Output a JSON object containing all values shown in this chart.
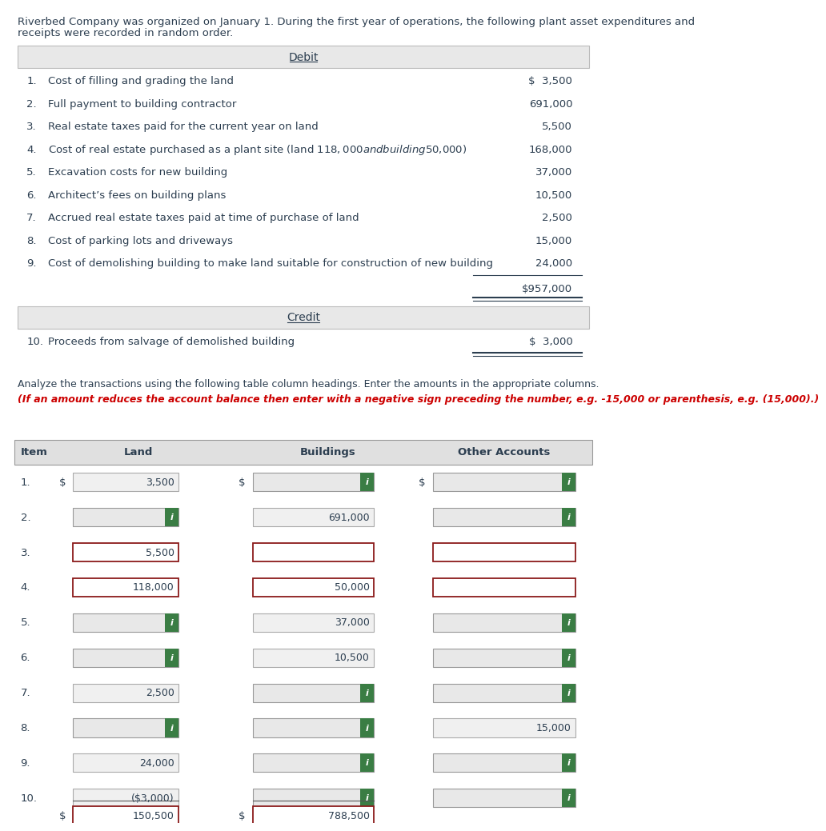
{
  "header_line1": "Riverbed Company was organized on January 1. During the first year of operations, the following plant asset expenditures and",
  "header_line2": "receipts were recorded in random order.",
  "debit_items": [
    {
      "num": "1.",
      "desc": "Cost of filling and grading the land",
      "amount": "$  3,500"
    },
    {
      "num": "2.",
      "desc": "Full payment to building contractor",
      "amount": "691,000"
    },
    {
      "num": "3.",
      "desc": "Real estate taxes paid for the current year on land",
      "amount": "5,500"
    },
    {
      "num": "4.",
      "desc": "Cost of real estate purchased as a plant site (land $118,000 and building $50,000)",
      "amount": "168,000"
    },
    {
      "num": "5.",
      "desc": "Excavation costs for new building",
      "amount": "37,000"
    },
    {
      "num": "6.",
      "desc": "Architect’s fees on building plans",
      "amount": "10,500"
    },
    {
      "num": "7.",
      "desc": "Accrued real estate taxes paid at time of purchase of land",
      "amount": "2,500"
    },
    {
      "num": "8.",
      "desc": "Cost of parking lots and driveways",
      "amount": "15,000"
    },
    {
      "num": "9.",
      "desc": "Cost of demolishing building to make land suitable for construction of new building",
      "amount": "24,000"
    }
  ],
  "debit_total": "$957,000",
  "credit_items": [
    {
      "num": "10.",
      "desc": "Proceeds from salvage of demolished building",
      "amount": "$  3,000"
    }
  ],
  "analyze_text_normal": "Analyze the transactions using the following table column headings. Enter the amounts in the appropriate columns. ",
  "analyze_text_italic": "(If an amount reduces the account balance then enter with a negative sign preceding the number, e.g. -15,000 or parenthesis, e.g. (15,000).)",
  "table_rows": [
    {
      "item": "1.",
      "land": {
        "value": "3,500",
        "has_dollar": true,
        "style": "normal"
      },
      "buildings": {
        "value": "",
        "has_dollar": true,
        "style": "green_i"
      },
      "other": {
        "value": "",
        "has_dollar": true,
        "style": "green_i"
      }
    },
    {
      "item": "2.",
      "land": {
        "value": "",
        "has_dollar": false,
        "style": "green_i"
      },
      "buildings": {
        "value": "691,000",
        "has_dollar": false,
        "style": "normal"
      },
      "other": {
        "value": "",
        "has_dollar": false,
        "style": "green_i"
      }
    },
    {
      "item": "3.",
      "land": {
        "value": "5,500",
        "has_dollar": false,
        "style": "red_border"
      },
      "buildings": {
        "value": "",
        "has_dollar": false,
        "style": "red_border"
      },
      "other": {
        "value": "",
        "has_dollar": false,
        "style": "red_border"
      }
    },
    {
      "item": "4.",
      "land": {
        "value": "118,000",
        "has_dollar": false,
        "style": "red_border"
      },
      "buildings": {
        "value": "50,000",
        "has_dollar": false,
        "style": "red_border"
      },
      "other": {
        "value": "",
        "has_dollar": false,
        "style": "red_border"
      }
    },
    {
      "item": "5.",
      "land": {
        "value": "",
        "has_dollar": false,
        "style": "green_i"
      },
      "buildings": {
        "value": "37,000",
        "has_dollar": false,
        "style": "normal"
      },
      "other": {
        "value": "",
        "has_dollar": false,
        "style": "green_i"
      }
    },
    {
      "item": "6.",
      "land": {
        "value": "",
        "has_dollar": false,
        "style": "green_i"
      },
      "buildings": {
        "value": "10,500",
        "has_dollar": false,
        "style": "normal"
      },
      "other": {
        "value": "",
        "has_dollar": false,
        "style": "green_i"
      }
    },
    {
      "item": "7.",
      "land": {
        "value": "2,500",
        "has_dollar": false,
        "style": "normal"
      },
      "buildings": {
        "value": "",
        "has_dollar": false,
        "style": "green_i"
      },
      "other": {
        "value": "",
        "has_dollar": false,
        "style": "green_i"
      }
    },
    {
      "item": "8.",
      "land": {
        "value": "",
        "has_dollar": false,
        "style": "green_i"
      },
      "buildings": {
        "value": "",
        "has_dollar": false,
        "style": "green_i"
      },
      "other": {
        "value": "15,000",
        "has_dollar": false,
        "style": "normal"
      }
    },
    {
      "item": "9.",
      "land": {
        "value": "24,000",
        "has_dollar": false,
        "style": "normal"
      },
      "buildings": {
        "value": "",
        "has_dollar": false,
        "style": "green_i"
      },
      "other": {
        "value": "",
        "has_dollar": false,
        "style": "green_i"
      }
    },
    {
      "item": "10.",
      "land": {
        "value": "($3,000)",
        "has_dollar": false,
        "style": "normal"
      },
      "buildings": {
        "value": "",
        "has_dollar": false,
        "style": "green_i"
      },
      "other": {
        "value": "",
        "has_dollar": false,
        "style": "green_i"
      }
    }
  ],
  "land_total": "150,500",
  "buildings_total": "788,500",
  "bg_color": "#ffffff",
  "section_header_bg": "#e8e8e8",
  "table_header_bg": "#e0e0e0",
  "green_color": "#3a7d44",
  "red_border_color": "#8b1a1a",
  "text_color": "#2c3e50",
  "font_size": 9.5
}
